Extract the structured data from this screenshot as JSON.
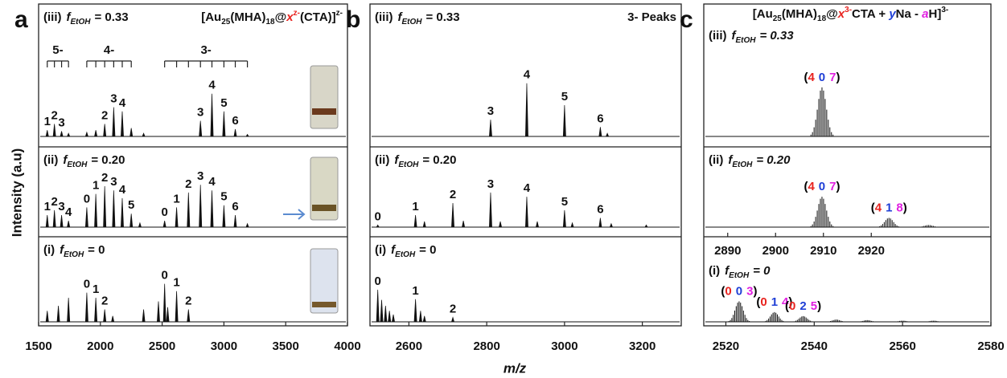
{
  "figure": {
    "ylabel": "Intensity (a.u)",
    "xlabel": "m/z"
  },
  "chart_data": [
    {
      "type": "spectrum",
      "letter": "a",
      "xlim": [
        1500,
        4000
      ],
      "xticks": [
        1500,
        2000,
        2500,
        3000,
        3500,
        4000
      ],
      "ylim": [
        0,
        100
      ],
      "peak_label_color": "#e8231f",
      "title_parts": [
        "[Au",
        "25",
        "(MHA)",
        "18",
        "@",
        "x",
        "z-",
        "(CTA)]",
        "z-"
      ],
      "subplots": [
        {
          "tag": "(iii)",
          "var": "f",
          "sub": "EtOH",
          "value": "= 0.33",
          "x": [
            1570,
            1628,
            1686,
            1742,
            1890,
            1963,
            2035,
            2108,
            2177,
            2250,
            2350,
            2810,
            2903,
            3000,
            3092,
            3190
          ],
          "values": [
            6,
            12,
            5,
            3,
            4,
            6,
            12,
            28,
            24,
            8,
            3,
            15,
            41,
            24,
            7,
            2
          ],
          "peak_labels": [
            "1",
            "2",
            "3",
            null,
            null,
            null,
            "2",
            "3",
            "4",
            null,
            null,
            "3",
            "4",
            "5",
            "6",
            null
          ],
          "ladders": [
            {
              "label": "5-",
              "x": [
                1570,
                1628,
                1686,
                1742
              ]
            },
            {
              "label": "4-",
              "x": [
                1890,
                1963,
                2035,
                2108,
                2177,
                2250
              ]
            },
            {
              "label": "3-",
              "x": [
                2520,
                2617,
                2713,
                2810,
                2903,
                3000,
                3092,
                3190
              ]
            }
          ]
        },
        {
          "tag": "(ii)",
          "var": "f",
          "sub": "EtOH",
          "value": "= 0.20",
          "x": [
            1570,
            1628,
            1686,
            1742,
            1890,
            1963,
            2035,
            2108,
            2177,
            2250,
            2320,
            2520,
            2617,
            2713,
            2810,
            2903,
            3000,
            3092,
            3190
          ],
          "values": [
            17,
            24,
            17,
            9,
            28,
            47,
            58,
            52,
            41,
            19,
            6,
            9,
            28,
            49,
            60,
            52,
            31,
            17,
            5
          ],
          "peak_labels": [
            "1",
            "2",
            "3",
            "4",
            "0",
            "1",
            "2",
            "3",
            "4",
            "5",
            null,
            "0",
            "1",
            "2",
            "3",
            "4",
            "5",
            "6",
            null
          ]
        },
        {
          "tag": "(i)",
          "var": "f",
          "sub": "EtOH",
          "value": "= 0",
          "x": [
            1570,
            1660,
            1742,
            1890,
            1963,
            2035,
            2100,
            2350,
            2470,
            2520,
            2545,
            2617,
            2713
          ],
          "values": [
            15,
            22,
            33,
            40,
            33,
            17,
            8,
            17,
            28,
            52,
            20,
            42,
            17
          ],
          "peak_labels": [
            null,
            null,
            null,
            "0",
            "1",
            "2",
            null,
            null,
            null,
            "0",
            null,
            "1",
            "2"
          ]
        }
      ]
    },
    {
      "type": "spectrum",
      "letter": "b",
      "xlim": [
        2500,
        3300
      ],
      "xticks": [
        2600,
        2800,
        3000,
        3200
      ],
      "ylim": [
        0,
        100
      ],
      "peak_label_color": "#e8231f",
      "note": "3- Peaks",
      "subplots": [
        {
          "tag": "(iii)",
          "var": "f",
          "sub": "EtOH",
          "value": "= 0.33",
          "x": [
            2810,
            2903,
            3000,
            3092,
            3110
          ],
          "values": [
            16,
            51,
            30,
            9,
            3
          ],
          "peak_labels": [
            "3",
            "4",
            "5",
            "6",
            null
          ]
        },
        {
          "tag": "(ii)",
          "var": "f",
          "sub": "EtOH",
          "value": "= 0.20",
          "x": [
            2520,
            2617,
            2640,
            2713,
            2740,
            2810,
            2835,
            2903,
            2930,
            3000,
            3020,
            3092,
            3120,
            3210
          ],
          "values": [
            3,
            17,
            8,
            34,
            9,
            49,
            8,
            43,
            8,
            24,
            6,
            13,
            5,
            3
          ],
          "peak_labels": [
            "0",
            "1",
            null,
            "2",
            null,
            "3",
            null,
            "4",
            null,
            "5",
            null,
            "6",
            null,
            null
          ]
        },
        {
          "tag": "(i)",
          "var": "f",
          "sub": "EtOH",
          "value": "= 0",
          "x": [
            2520,
            2530,
            2540,
            2550,
            2560,
            2617,
            2630,
            2640,
            2713
          ],
          "values": [
            44,
            30,
            22,
            15,
            10,
            31,
            15,
            8,
            6
          ],
          "peak_labels": [
            "0",
            null,
            null,
            null,
            null,
            "1",
            null,
            null,
            "2"
          ]
        }
      ]
    },
    {
      "type": "spectrum",
      "letter": "c",
      "ylim": [
        0,
        100
      ],
      "peak_label_colors": [
        "#000000",
        "#e8231f",
        "#1f3fd6",
        "#e020e0",
        "#000000"
      ],
      "title_parts": [
        "[Au",
        "25",
        "(MHA)",
        "18",
        "@",
        "x",
        "3-",
        "CTA + ",
        "y",
        "Na - ",
        "a",
        "H]",
        "3-"
      ],
      "subplots": [
        {
          "tag": "(iii)",
          "var": "f",
          "sub": "EtOH",
          "value": "= 0.33",
          "xlim": [
            2885,
            2945
          ],
          "x": [
            2909.7
          ],
          "values": [
            47
          ],
          "peak_labels": [
            [
              "(",
              "4",
              "0",
              "7",
              ")"
            ]
          ]
        },
        {
          "tag": "(ii)",
          "var": "f",
          "sub": "EtOH",
          "value": "= 0.20",
          "xlim": [
            2885,
            2945
          ],
          "xticks": [
            2890,
            2900,
            2910,
            2920
          ],
          "x": [
            2909.7,
            2923.7,
            2932
          ],
          "values": [
            43,
            13,
            3
          ],
          "peak_labels": [
            [
              "(",
              "4",
              "0",
              "7",
              ")"
            ],
            [
              "(",
              "4",
              "1",
              "8",
              ")"
            ],
            null
          ]
        },
        {
          "tag": "(i)",
          "var": "f",
          "sub": "EtOH",
          "value": "= 0",
          "xlim": [
            2515,
            2580
          ],
          "xticks": [
            2520,
            2540,
            2560,
            2580
          ],
          "x": [
            2523,
            2531,
            2537.5,
            2545,
            2552,
            2560,
            2567
          ],
          "values": [
            36,
            17,
            10,
            4,
            3,
            2,
            2
          ],
          "peak_labels": [
            [
              "(",
              "0",
              "0",
              "3",
              ")"
            ],
            [
              "(",
              "0",
              "1",
              "4",
              ")"
            ],
            [
              "(",
              "0",
              "2",
              "5",
              ")"
            ],
            null,
            null,
            null,
            null
          ]
        }
      ]
    }
  ]
}
